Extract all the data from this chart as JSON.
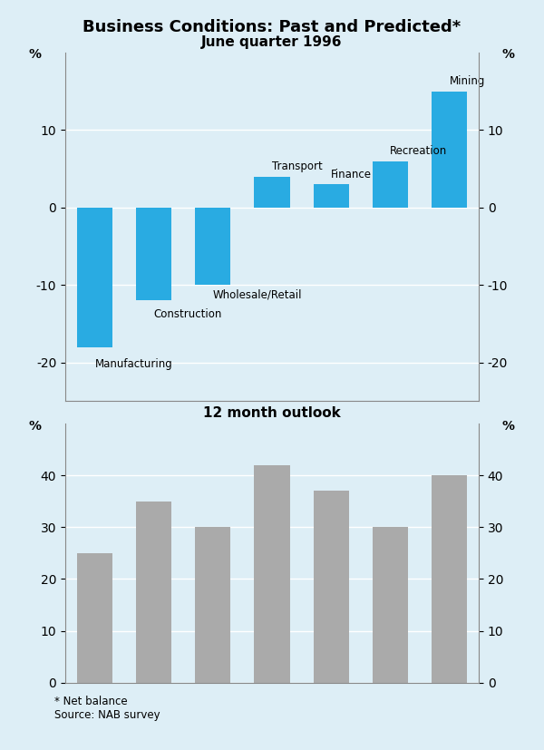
{
  "title": "Business Conditions: Past and Predicted*",
  "background_color": "#ddeef6",
  "top_chart": {
    "title": "June quarter 1996",
    "categories": [
      "Manufacturing",
      "Construction",
      "Wholesale/Retail",
      "Transport",
      "Finance",
      "Recreation",
      "Mining"
    ],
    "values": [
      -18,
      -12,
      -10,
      4,
      3,
      6,
      15
    ],
    "bar_color": "#29abe2",
    "ylim": [
      -25,
      20
    ],
    "yticks": [
      -20,
      -10,
      0,
      10
    ]
  },
  "bottom_chart": {
    "title": "12 month outlook",
    "categories": [
      "Manufacturing",
      "Construction",
      "Wholesale/Retail",
      "Transport",
      "Finance",
      "Recreation",
      "Mining"
    ],
    "values": [
      25,
      35,
      30,
      42,
      37,
      30,
      40
    ],
    "bar_color": "#aaaaaa",
    "ylim": [
      0,
      50
    ],
    "yticks": [
      0,
      10,
      20,
      30,
      40
    ]
  },
  "footnote1": "* Net balance",
  "footnote2": "Source: NAB survey",
  "top_bar_labels": [
    {
      "xi": 0,
      "yi": -19.5,
      "ha": "left",
      "va": "top",
      "label": "Manufacturing"
    },
    {
      "xi": 1,
      "yi": -13,
      "ha": "left",
      "va": "top",
      "label": "Construction"
    },
    {
      "xi": 2,
      "yi": -10.5,
      "ha": "left",
      "va": "top",
      "label": "Wholesale/Retail"
    },
    {
      "xi": 3,
      "yi": 4.5,
      "ha": "left",
      "va": "bottom",
      "label": "Transport"
    },
    {
      "xi": 4,
      "yi": 3.5,
      "ha": "left",
      "va": "bottom",
      "label": "Finance"
    },
    {
      "xi": 5,
      "yi": 6.5,
      "ha": "left",
      "va": "bottom",
      "label": "Recreation"
    },
    {
      "xi": 6,
      "yi": 15.5,
      "ha": "left",
      "va": "bottom",
      "label": "Mining"
    }
  ]
}
